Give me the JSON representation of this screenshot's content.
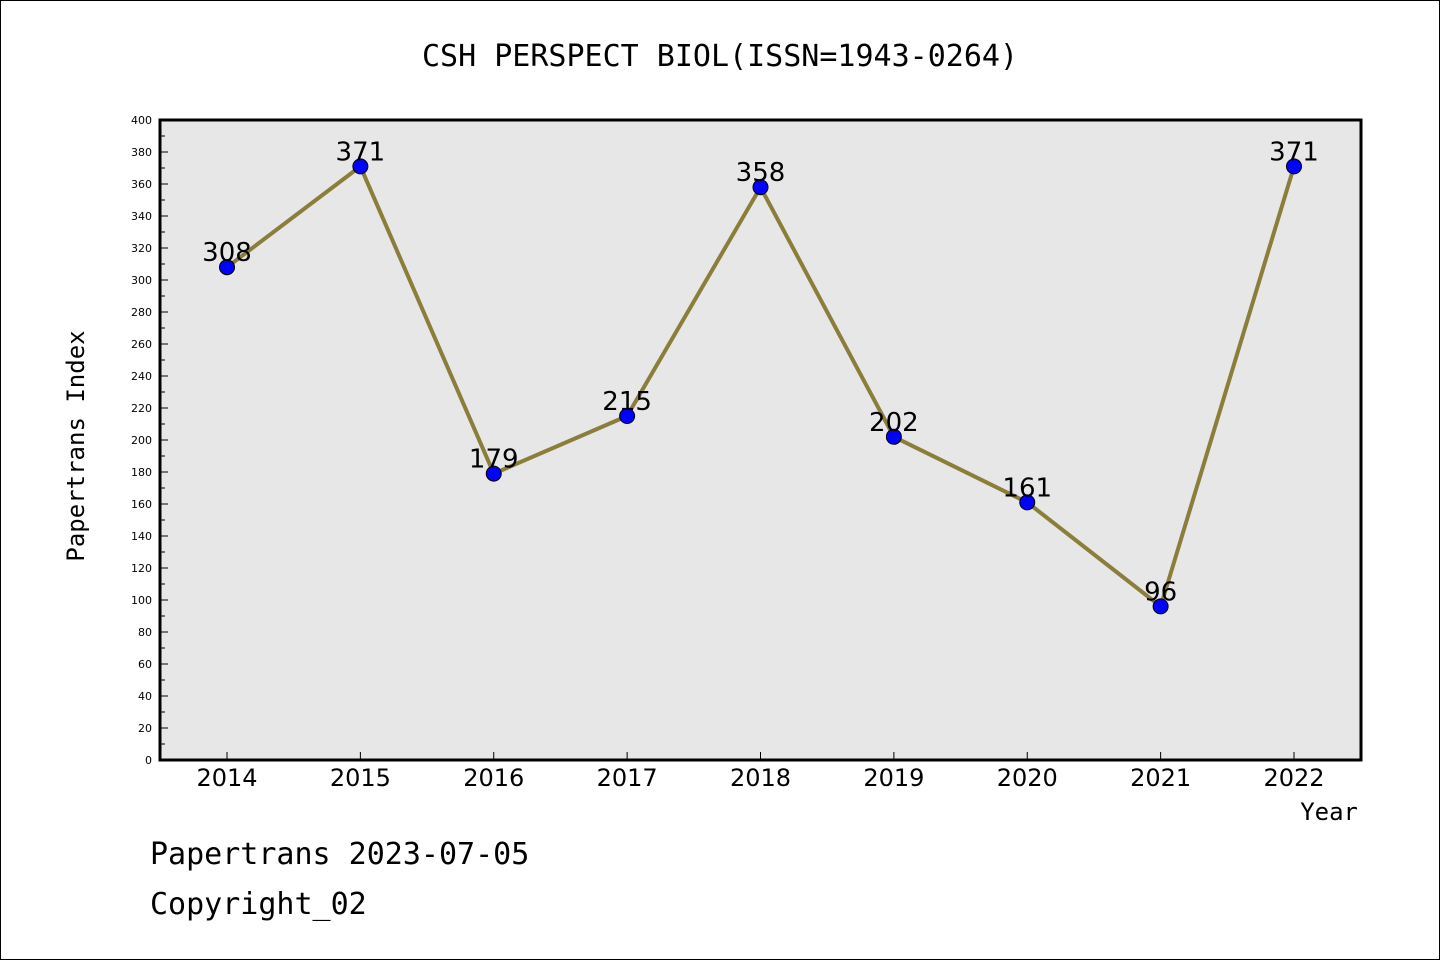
{
  "chart_data": {
    "type": "line",
    "title": "CSH PERSPECT BIOL(ISSN=1943-0264)",
    "xlabel": "Year",
    "ylabel": "Papertrans Index",
    "categories": [
      "2014",
      "2015",
      "2016",
      "2017",
      "2018",
      "2019",
      "2020",
      "2021",
      "2022"
    ],
    "values": [
      308,
      371,
      179,
      215,
      358,
      202,
      161,
      96,
      371
    ],
    "ylim": [
      0,
      400
    ],
    "ytick_step": 20,
    "grid": false,
    "line_color": "#8B7D3A",
    "marker_color": "#0000FF",
    "plot_background": "#E7E7E7"
  },
  "footer": {
    "line1": "Papertrans 2023-07-05",
    "line2": "Copyright_02"
  }
}
